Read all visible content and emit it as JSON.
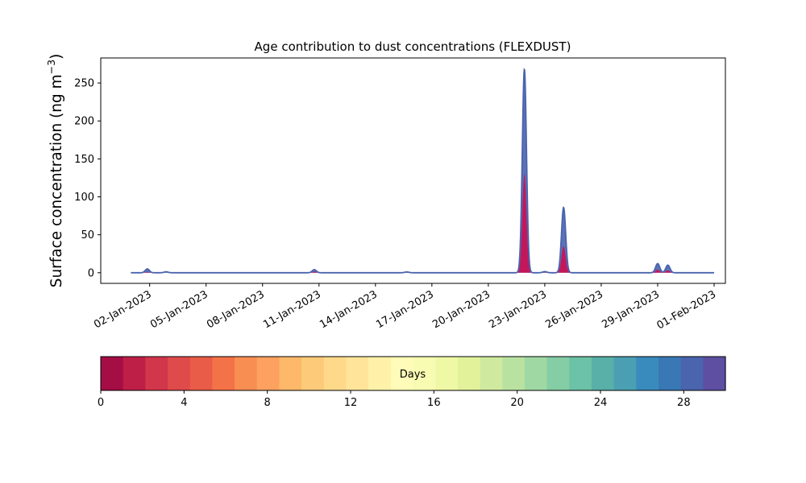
{
  "chart_data": {
    "type": "area",
    "title": "Age contribution to dust concentrations (FLEXDUST)",
    "ylabel": "Surface concentration (ng m",
    "ylabel_sup": "−3",
    "ylabel_close": ")",
    "xlabel": "",
    "x_ticks": [
      "02-Jan-2023",
      "05-Jan-2023",
      "08-Jan-2023",
      "11-Jan-2023",
      "14-Jan-2023",
      "17-Jan-2023",
      "20-Jan-2023",
      "23-Jan-2023",
      "26-Jan-2023",
      "29-Jan-2023",
      "01-Feb-2023"
    ],
    "y_ticks": [
      0,
      50,
      100,
      150,
      200,
      250
    ],
    "x_range_days": [
      -1.6,
      31.6
    ],
    "x_data_range_days": [
      0,
      31
    ],
    "ylim": [
      -14,
      283
    ],
    "grid": false,
    "series_line_color": "#4a63ae",
    "inner_fill_color": "#c2185b",
    "peaks": [
      {
        "date": "01-Jan-2023 21:00",
        "total": 5,
        "young": 1
      },
      {
        "date": "02-Jan-2023 21:00",
        "total": 1.2,
        "young": 0
      },
      {
        "date": "10-Jan-2023 18:00",
        "total": 4,
        "young": 1.5
      },
      {
        "date": "15-Jan-2023 16:00",
        "total": 1,
        "young": 0
      },
      {
        "date": "21-Jan-2023 22:00",
        "total": 268,
        "young": 130
      },
      {
        "date": "23-Jan-2023 00:00",
        "total": 1.5,
        "young": 0.5
      },
      {
        "date": "24-Jan-2023 00:00",
        "total": 86,
        "young": 35
      },
      {
        "date": "29-Jan-2023 00:00",
        "total": 12,
        "young": 4
      },
      {
        "date": "29-Jan-2023 13:00",
        "total": 10,
        "young": 3
      }
    ],
    "colorbar": {
      "label": "Days",
      "ticks": [
        0,
        4,
        8,
        12,
        16,
        20,
        24,
        28
      ],
      "range": [
        0,
        30
      ],
      "colors": [
        "#a50d45",
        "#bd1f47",
        "#d2364b",
        "#df4a4b",
        "#e95c47",
        "#f47247",
        "#f98e52",
        "#fca15f",
        "#fdb86a",
        "#fdca79",
        "#fed98a",
        "#ffe49a",
        "#fff1a8",
        "#fffbb8",
        "#f8fcb2",
        "#eef8a5",
        "#e1f29b",
        "#cfea9e",
        "#b9e2a1",
        "#9fd8a3",
        "#85cda5",
        "#6cc2a6",
        "#58b0a9",
        "#4aa0b2",
        "#3a8bbd",
        "#3978b5",
        "#4a64ae",
        "#5e4fa2"
      ]
    }
  }
}
